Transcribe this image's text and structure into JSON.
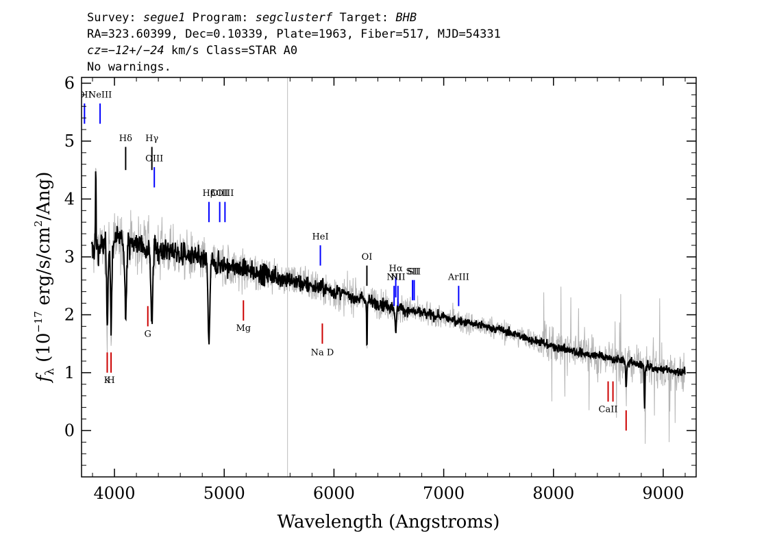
{
  "header": {
    "line1": {
      "survey_label": "Survey: ",
      "survey": "segue1",
      "program_label": " Program: ",
      "program": "segclusterf",
      "target_label": " Target: ",
      "target": "BHB"
    },
    "line2": "RA=323.60399, Dec=0.10339, Plate=1963, Fiber=517, MJD=54331",
    "line3": {
      "cz": "cz=−12+/−24",
      "rest": " km/s Class=STAR A0"
    },
    "line4": "No warnings."
  },
  "chart_data": {
    "type": "line",
    "xlabel": "Wavelength (Angstroms)",
    "ylabel_prefix": "f",
    "ylabel_sub": "λ",
    "ylabel_text1": " (10",
    "ylabel_exp1": "−17",
    "ylabel_text2": " erg/s/cm",
    "ylabel_exp2": "2",
    "ylabel_text3": "/Ang)",
    "xlim": [
      3700,
      9300
    ],
    "ylim": [
      -0.8,
      6.1
    ],
    "xticks": [
      4000,
      5000,
      6000,
      7000,
      8000,
      9000
    ],
    "yticks": [
      0,
      1,
      2,
      3,
      4,
      5,
      6
    ],
    "vertical_marker_x": 5577,
    "continuum": [
      [
        3790,
        3.1
      ],
      [
        4000,
        3.3
      ],
      [
        4500,
        3.1
      ],
      [
        5000,
        2.85
      ],
      [
        5500,
        2.65
      ],
      [
        6000,
        2.4
      ],
      [
        6500,
        2.15
      ],
      [
        7000,
        1.95
      ],
      [
        7500,
        1.75
      ],
      [
        8000,
        1.45
      ],
      [
        8500,
        1.25
      ],
      [
        9000,
        1.05
      ],
      [
        9200,
        1.0
      ]
    ],
    "absorption_lines": [
      {
        "x": 3934,
        "depth": 1.4,
        "width": 9
      },
      {
        "x": 3970,
        "depth": 1.5,
        "width": 9
      },
      {
        "x": 4102,
        "depth": 1.1,
        "width": 12
      },
      {
        "x": 4341,
        "depth": 1.3,
        "width": 12
      },
      {
        "x": 4861,
        "depth": 1.35,
        "width": 12
      },
      {
        "x": 6300,
        "depth": 0.8,
        "width": 4
      },
      {
        "x": 6563,
        "depth": 0.5,
        "width": 8
      },
      {
        "x": 8662,
        "depth": 0.45,
        "width": 6
      },
      {
        "x": 8830,
        "depth": 0.75,
        "width": 5
      }
    ],
    "emission_lines": [
      {
        "x": 3830,
        "height": 1.5,
        "width": 4
      }
    ],
    "noise_level": {
      "flux_blue": 0.25,
      "flux_red": 0.08,
      "error_blue": 0.5,
      "error_red": 0.2
    },
    "line_labels": [
      {
        "text": "OII",
        "x": 3727,
        "y_text": 5.75,
        "tick_top": 5.65,
        "tick_bottom": 5.3,
        "color": "#0000ff"
      },
      {
        "text": "NeIII",
        "x": 3869,
        "y_text": 5.75,
        "tick_top": 5.65,
        "tick_bottom": 5.3,
        "color": "#0000ff"
      },
      {
        "text": "Hδ",
        "x": 4102,
        "y_text": 5.0,
        "tick_top": 4.9,
        "tick_bottom": 4.5,
        "color": "#000000"
      },
      {
        "text": "Hγ",
        "x": 4341,
        "y_text": 5.0,
        "tick_top": 4.9,
        "tick_bottom": 4.5,
        "color": "#000000"
      },
      {
        "text": "OIII",
        "x": 4363,
        "y_text": 4.65,
        "tick_top": 4.55,
        "tick_bottom": 4.2,
        "color": "#0000ff"
      },
      {
        "text": "Hβ",
        "x": 4861,
        "y_text": 4.05,
        "tick_top": 3.95,
        "tick_bottom": 3.6,
        "color": "#0000ff"
      },
      {
        "text": "OIII",
        "x": 4959,
        "y_text": 4.05,
        "tick_top": 3.95,
        "tick_bottom": 3.6,
        "color": "#0000ff"
      },
      {
        "text": "OIII",
        "x": 5007,
        "y_text": 4.05,
        "tick_top": 3.95,
        "tick_bottom": 3.6,
        "color": "#0000ff"
      },
      {
        "text": "HeI",
        "x": 5876,
        "y_text": 3.3,
        "tick_top": 3.2,
        "tick_bottom": 2.85,
        "color": "#0000ff"
      },
      {
        "text": "OI",
        "x": 6300,
        "y_text": 2.95,
        "tick_top": 2.85,
        "tick_bottom": 2.5,
        "color": "#000000"
      },
      {
        "text": "NII",
        "x": 6548,
        "y_text": 2.6,
        "tick_top": 2.5,
        "tick_bottom": 2.15,
        "color": "#0000ff"
      },
      {
        "text": "Hα",
        "x": 6563,
        "y_text": 2.75,
        "tick_top": 2.65,
        "tick_bottom": 2.3,
        "color": "#0000ff"
      },
      {
        "text": "NII",
        "x": 6583,
        "y_text": 2.6,
        "tick_top": 2.5,
        "tick_bottom": 2.15,
        "color": "#0000ff"
      },
      {
        "text": "SII",
        "x": 6716,
        "y_text": 2.7,
        "tick_top": 2.6,
        "tick_bottom": 2.25,
        "color": "#0000ff"
      },
      {
        "text": "SII",
        "x": 6731,
        "y_text": 2.7,
        "tick_top": 2.6,
        "tick_bottom": 2.25,
        "color": "#0000ff"
      },
      {
        "text": "ArIII",
        "x": 7136,
        "y_text": 2.6,
        "tick_top": 2.5,
        "tick_bottom": 2.15,
        "color": "#0000ff"
      },
      {
        "text": "G",
        "x": 4304,
        "y_text": 1.62,
        "tick_top": 2.15,
        "tick_bottom": 1.8,
        "color": "#cc0000"
      },
      {
        "text": "Mg",
        "x": 5175,
        "y_text": 1.72,
        "tick_top": 2.25,
        "tick_bottom": 1.9,
        "color": "#cc0000"
      },
      {
        "text": "Na D",
        "x": 5894,
        "y_text": 1.3,
        "tick_top": 1.85,
        "tick_bottom": 1.5,
        "color": "#cc0000"
      },
      {
        "text": "K",
        "x": 3934,
        "y_text": 0.82,
        "tick_top": 1.35,
        "tick_bottom": 1.0,
        "color": "#cc0000"
      },
      {
        "text": "H",
        "x": 3969,
        "y_text": 0.82,
        "tick_top": 1.35,
        "tick_bottom": 1.0,
        "color": "#cc0000"
      },
      {
        "text": "CaII",
        "x": 8498,
        "y_text": 0.32,
        "tick_top": 0.85,
        "tick_bottom": 0.5,
        "color": "#cc0000"
      },
      {
        "text": "CaII",
        "x": 8542,
        "y_text": 0.32,
        "tick_top": 0.85,
        "tick_bottom": 0.5,
        "color": "#cc0000"
      },
      {
        "text": "CaII",
        "x": 8662,
        "y_text": 0.32,
        "tick_top": 0.35,
        "tick_bottom": 0.0,
        "color": "#cc0000"
      }
    ],
    "line_label_visible": [
      true,
      true,
      true,
      true,
      true,
      true,
      true,
      true,
      true,
      true,
      true,
      true,
      true,
      true,
      true,
      true,
      true,
      true,
      true,
      true,
      true,
      true,
      false,
      false
    ]
  }
}
